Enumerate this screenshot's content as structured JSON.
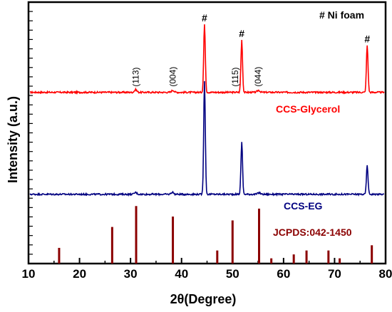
{
  "chart_data": {
    "type": "line",
    "xlabel": "2θ(Degree)",
    "ylabel": "Intensity (a.u.)",
    "xlim": [
      10,
      80
    ],
    "x_ticks": [
      10,
      20,
      30,
      40,
      50,
      60,
      70,
      80
    ],
    "note": "# Ni foam",
    "series": [
      {
        "name": "CCS-Glycerol",
        "color": "#ff0000",
        "baseline": 0.655,
        "peaks": [
          [
            31.0,
            0.01
          ],
          [
            38.3,
            0.008
          ],
          [
            44.5,
            0.26
          ],
          [
            51.8,
            0.2
          ],
          [
            55.1,
            0.008
          ],
          [
            76.4,
            0.18
          ]
        ]
      },
      {
        "name": "CCS-EG",
        "color": "#000080",
        "baseline": 0.265,
        "peaks": [
          [
            31.0,
            0.007
          ],
          [
            38.2,
            0.008
          ],
          [
            44.5,
            0.435
          ],
          [
            51.8,
            0.2
          ],
          [
            55.2,
            0.006
          ],
          [
            76.4,
            0.11
          ]
        ]
      },
      {
        "name": "JCPDS:042-1450",
        "type": "stick",
        "color": "#8b0000",
        "x": [
          16.0,
          26.4,
          31.1,
          38.3,
          47.0,
          50.0,
          55.2,
          57.6,
          62.0,
          64.5,
          68.8,
          71.0,
          77.3
        ],
        "values": [
          0.06,
          0.14,
          0.22,
          0.18,
          0.05,
          0.165,
          0.21,
          0.02,
          0.035,
          0.05,
          0.05,
          0.02,
          0.07
        ]
      }
    ],
    "annotations": [
      {
        "text": "(113)",
        "x": 31.0
      },
      {
        "text": "(004)",
        "x": 38.3
      },
      {
        "text": "(115)",
        "x": 50.5
      },
      {
        "text": "(044)",
        "x": 55.0
      },
      {
        "text": "#",
        "x": 44.5
      },
      {
        "text": "#",
        "x": 51.8
      },
      {
        "text": "#",
        "x": 76.4
      }
    ]
  }
}
